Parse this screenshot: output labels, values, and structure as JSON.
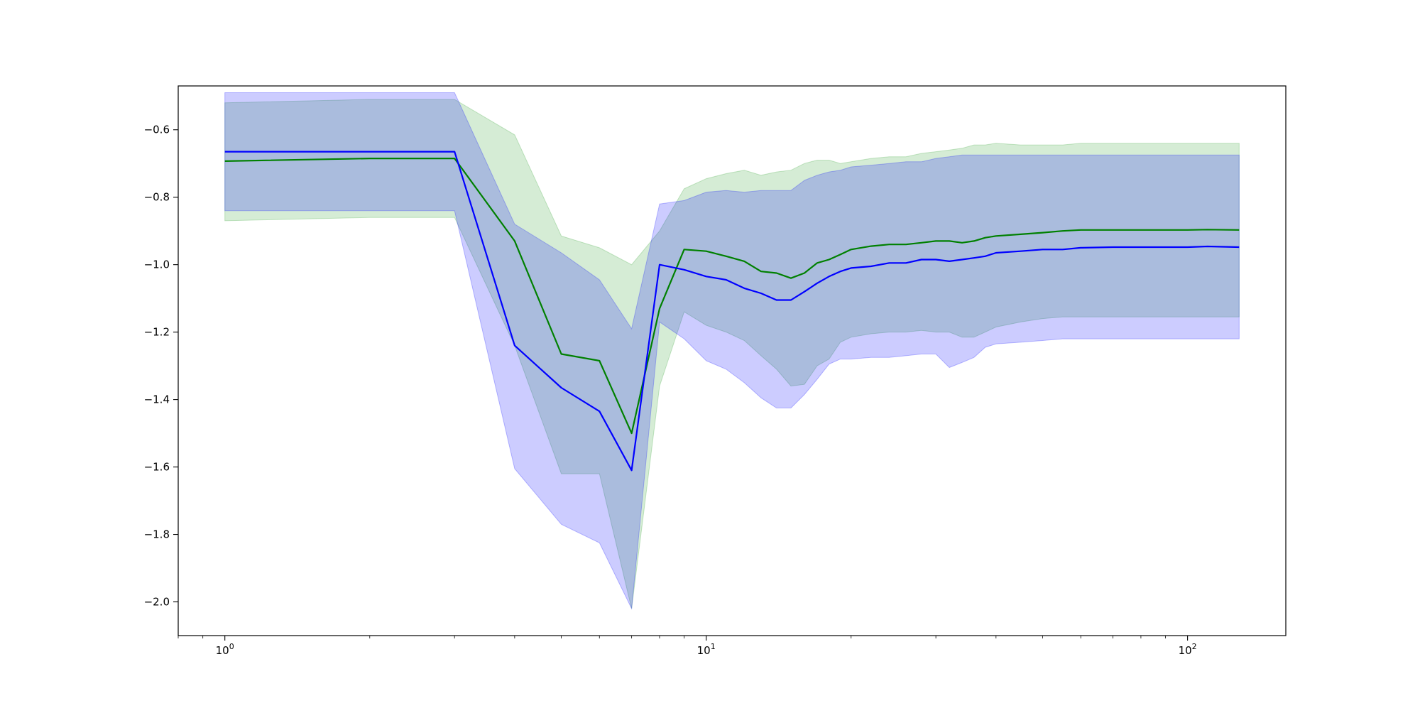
{
  "chart_data": {
    "type": "line",
    "title": "",
    "xlabel": "",
    "ylabel": "",
    "xscale": "log",
    "xlim": [
      0.8,
      160
    ],
    "ylim": [
      -2.1,
      -0.47
    ],
    "grid": false,
    "legend": "none",
    "x_ticks": [
      {
        "value": 1,
        "base": "10",
        "exp": "0"
      },
      {
        "value": 10,
        "base": "10",
        "exp": "1"
      },
      {
        "value": 100,
        "base": "10",
        "exp": "2"
      }
    ],
    "y_ticks": [
      {
        "value": -0.6,
        "label": "−0.6"
      },
      {
        "value": -0.8,
        "label": "−0.8"
      },
      {
        "value": -1.0,
        "label": "−1.0"
      },
      {
        "value": -1.2,
        "label": "−1.2"
      },
      {
        "value": -1.4,
        "label": "−1.4"
      },
      {
        "value": -1.6,
        "label": "−1.6"
      },
      {
        "value": -1.8,
        "label": "−1.8"
      },
      {
        "value": -2.0,
        "label": "−2.0"
      }
    ],
    "series": [
      {
        "color": "#008000",
        "band_color": "#2ca02c",
        "x": [
          1,
          2,
          3,
          4,
          5,
          6,
          7,
          8,
          9,
          10,
          11,
          12,
          13,
          14,
          15,
          16,
          17,
          18,
          19,
          20,
          22,
          24,
          26,
          28,
          30,
          32,
          34,
          36,
          38,
          40,
          45,
          50,
          55,
          60,
          70,
          80,
          90,
          100,
          110,
          128
        ],
        "y": [
          -0.693,
          -0.685,
          -0.685,
          -0.93,
          -1.265,
          -1.285,
          -1.5,
          -1.13,
          -0.955,
          -0.96,
          -0.975,
          -0.99,
          -1.02,
          -1.025,
          -1.04,
          -1.025,
          -0.995,
          -0.985,
          -0.97,
          -0.955,
          -0.945,
          -0.94,
          -0.94,
          -0.935,
          -0.93,
          -0.93,
          -0.935,
          -0.93,
          -0.92,
          -0.915,
          -0.91,
          -0.905,
          -0.9,
          -0.897,
          -0.897,
          -0.897,
          -0.897,
          -0.897,
          -0.896,
          -0.897
        ],
        "upper": [
          -0.52,
          -0.51,
          -0.51,
          -0.615,
          -0.915,
          -0.95,
          -1.0,
          -0.9,
          -0.775,
          -0.745,
          -0.73,
          -0.72,
          -0.735,
          -0.725,
          -0.72,
          -0.7,
          -0.69,
          -0.69,
          -0.7,
          -0.695,
          -0.685,
          -0.68,
          -0.68,
          -0.67,
          -0.665,
          -0.66,
          -0.655,
          -0.645,
          -0.645,
          -0.64,
          -0.645,
          -0.645,
          -0.645,
          -0.64,
          -0.64,
          -0.64,
          -0.64,
          -0.64,
          -0.64,
          -0.64
        ],
        "lower": [
          -0.87,
          -0.86,
          -0.86,
          -1.24,
          -1.62,
          -1.62,
          -2.02,
          -1.36,
          -1.14,
          -1.18,
          -1.2,
          -1.225,
          -1.27,
          -1.31,
          -1.36,
          -1.355,
          -1.3,
          -1.28,
          -1.23,
          -1.215,
          -1.205,
          -1.2,
          -1.2,
          -1.195,
          -1.2,
          -1.2,
          -1.215,
          -1.215,
          -1.2,
          -1.185,
          -1.17,
          -1.16,
          -1.155,
          -1.155,
          -1.155,
          -1.155,
          -1.155,
          -1.155,
          -1.155,
          -1.155
        ]
      },
      {
        "color": "#0000ff",
        "band_color": "#0000ff",
        "x": [
          1,
          2,
          3,
          4,
          5,
          6,
          7,
          8,
          9,
          10,
          11,
          12,
          13,
          14,
          15,
          16,
          17,
          18,
          19,
          20,
          22,
          24,
          26,
          28,
          30,
          32,
          34,
          36,
          38,
          40,
          45,
          50,
          55,
          60,
          70,
          80,
          90,
          100,
          110,
          128
        ],
        "y": [
          -0.665,
          -0.665,
          -0.665,
          -1.24,
          -1.365,
          -1.435,
          -1.61,
          -1.0,
          -1.015,
          -1.035,
          -1.045,
          -1.07,
          -1.085,
          -1.105,
          -1.105,
          -1.08,
          -1.055,
          -1.035,
          -1.02,
          -1.01,
          -1.005,
          -0.995,
          -0.995,
          -0.985,
          -0.985,
          -0.99,
          -0.985,
          -0.98,
          -0.975,
          -0.965,
          -0.96,
          -0.955,
          -0.955,
          -0.95,
          -0.948,
          -0.948,
          -0.948,
          -0.948,
          -0.946,
          -0.948
        ],
        "upper": [
          -0.49,
          -0.49,
          -0.49,
          -0.88,
          -0.965,
          -1.045,
          -1.19,
          -0.82,
          -0.81,
          -0.785,
          -0.78,
          -0.785,
          -0.78,
          -0.78,
          -0.78,
          -0.75,
          -0.735,
          -0.725,
          -0.72,
          -0.71,
          -0.705,
          -0.7,
          -0.695,
          -0.695,
          -0.685,
          -0.68,
          -0.675,
          -0.675,
          -0.675,
          -0.675,
          -0.675,
          -0.675,
          -0.675,
          -0.675,
          -0.675,
          -0.675,
          -0.675,
          -0.675,
          -0.675,
          -0.675
        ],
        "lower": [
          -0.84,
          -0.84,
          -0.84,
          -1.605,
          -1.77,
          -1.825,
          -2.02,
          -1.17,
          -1.22,
          -1.285,
          -1.31,
          -1.35,
          -1.395,
          -1.425,
          -1.425,
          -1.385,
          -1.34,
          -1.295,
          -1.28,
          -1.28,
          -1.275,
          -1.275,
          -1.27,
          -1.265,
          -1.265,
          -1.305,
          -1.29,
          -1.275,
          -1.245,
          -1.235,
          -1.23,
          -1.225,
          -1.22,
          -1.22,
          -1.22,
          -1.22,
          -1.22,
          -1.22,
          -1.22,
          -1.22
        ]
      }
    ]
  }
}
